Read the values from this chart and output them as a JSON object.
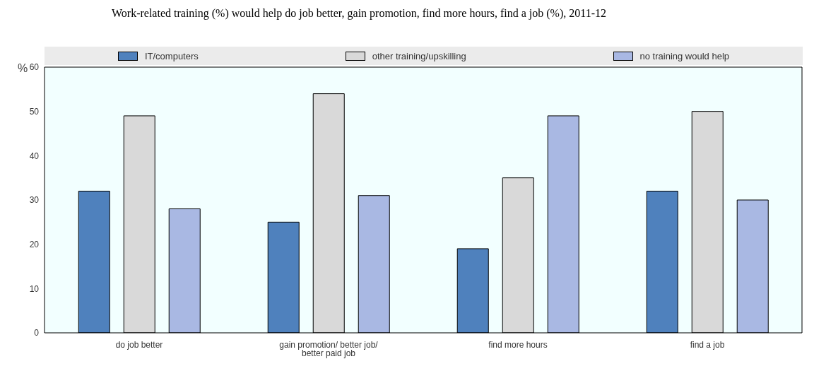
{
  "chart_data": {
    "type": "bar",
    "title": "Work-related training (%) would help do job better, gain promotion, find more hours, find a job (%), 2011-12",
    "ylabel": "%",
    "categories": [
      "do job better",
      "gain promotion/ better job/ better paid job",
      "find more hours",
      "find a job"
    ],
    "series": [
      {
        "name": "IT/computers",
        "color": "#4f81bd",
        "values": [
          32,
          25,
          19,
          32
        ]
      },
      {
        "name": "other training/upskilling",
        "color": "#d9d9d9",
        "values": [
          49,
          54,
          35,
          50
        ]
      },
      {
        "name": "no training would help",
        "color": "#a9b8e3",
        "values": [
          28,
          31,
          49,
          30
        ]
      }
    ],
    "ylim": [
      0,
      60
    ],
    "yticks": [
      0,
      10,
      20,
      30,
      40,
      50,
      60
    ],
    "grid": false,
    "legend": "top"
  }
}
